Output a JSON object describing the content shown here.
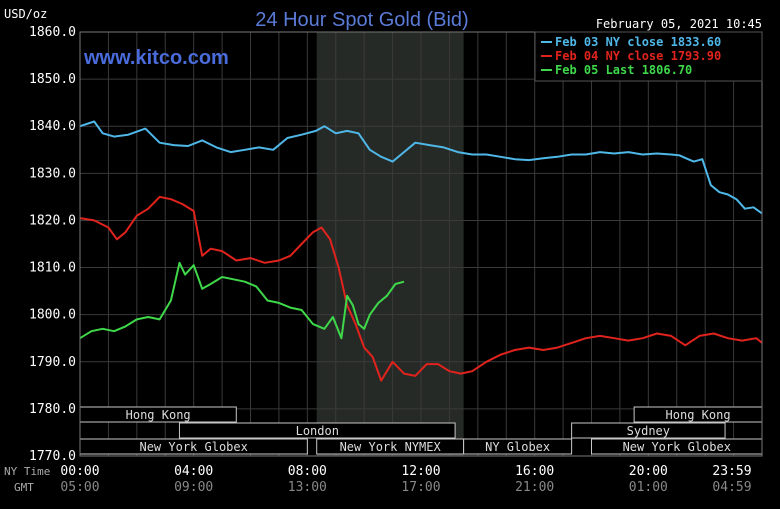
{
  "header": {
    "title": "24 Hour Spot Gold (Bid)",
    "unit": "USD/oz",
    "timestamp": "February 05, 2021 10:45",
    "watermark": "www.kitco.com"
  },
  "colors": {
    "background": "#000000",
    "grid": "#3a3a3a",
    "axis_text": "#ffffff",
    "title": "#5b7bd8",
    "watermark": "#4a6bdb",
    "shade": "#262a26",
    "session_box": "#c8c8c8",
    "session_text": "#000000"
  },
  "chart_data": {
    "type": "line",
    "title": "24 Hour Spot Gold (Bid)",
    "ylabel": "USD/oz",
    "ylim": [
      1770,
      1860
    ],
    "y_ticks": [
      "1860.0",
      "1850.0",
      "1840.0",
      "1830.0",
      "1820.0",
      "1810.0",
      "1800.0",
      "1790.0",
      "1780.0",
      "1770.0"
    ],
    "xlim": [
      0,
      24
    ],
    "x_tick_hours": [
      0,
      4,
      8,
      12,
      16,
      20,
      23.983
    ],
    "x_ticks_ny": [
      "00:00",
      "04:00",
      "08:00",
      "12:00",
      "16:00",
      "20:00",
      "23:59"
    ],
    "x_ticks_gmt": [
      "05:00",
      "09:00",
      "13:00",
      "17:00",
      "21:00",
      "01:00",
      "04:59"
    ],
    "x_axis_labels": {
      "ny": "NY Time",
      "gmt": "GMT"
    },
    "shaded_region_hours": [
      8.33,
      13.5
    ],
    "grid": true,
    "legend_placement": "top-right",
    "series": [
      {
        "name": "Feb 03 NY close 1833.60",
        "color": "#4fb8e8",
        "hours": [
          0,
          0.5,
          0.8,
          1.2,
          1.7,
          2.3,
          2.8,
          3.3,
          3.8,
          4.3,
          4.8,
          5.3,
          5.8,
          6.3,
          6.8,
          7.3,
          7.8,
          8.3,
          8.6,
          9.0,
          9.4,
          9.8,
          10.2,
          10.6,
          11.0,
          11.4,
          11.8,
          12.3,
          12.8,
          13.3,
          13.8,
          14.3,
          14.8,
          15.3,
          15.8,
          16.3,
          16.8,
          17.3,
          17.8,
          18.3,
          18.8,
          19.3,
          19.8,
          20.3,
          20.8,
          21.1,
          21.4,
          21.6,
          21.9,
          22.2,
          22.5,
          22.8,
          23.1,
          23.4,
          23.7,
          24.0
        ],
        "values": [
          1840.0,
          1841.0,
          1838.5,
          1837.8,
          1838.2,
          1839.5,
          1836.5,
          1836.0,
          1835.8,
          1837.0,
          1835.5,
          1834.5,
          1835.0,
          1835.5,
          1835.0,
          1837.5,
          1838.2,
          1839.0,
          1840.0,
          1838.5,
          1839.0,
          1838.5,
          1835.0,
          1833.5,
          1832.5,
          1834.5,
          1836.5,
          1836.0,
          1835.5,
          1834.5,
          1834.0,
          1834.0,
          1833.5,
          1833.0,
          1832.8,
          1833.2,
          1833.5,
          1834.0,
          1834.0,
          1834.5,
          1834.2,
          1834.5,
          1834.0,
          1834.2,
          1834.0,
          1833.8,
          1833.0,
          1832.5,
          1833.0,
          1827.5,
          1826.0,
          1825.5,
          1824.5,
          1822.5,
          1822.8,
          1821.5
        ]
      },
      {
        "name": "Feb 04 NY close 1793.90",
        "color": "#e0231c",
        "hours": [
          0,
          0.5,
          1.0,
          1.3,
          1.6,
          2.0,
          2.4,
          2.8,
          3.2,
          3.6,
          4.0,
          4.3,
          4.6,
          5.0,
          5.5,
          6.0,
          6.5,
          7.0,
          7.4,
          7.8,
          8.2,
          8.5,
          8.8,
          9.1,
          9.4,
          9.7,
          10.0,
          10.3,
          10.6,
          11.0,
          11.4,
          11.8,
          12.2,
          12.6,
          13.0,
          13.4,
          13.8,
          14.3,
          14.8,
          15.3,
          15.8,
          16.3,
          16.8,
          17.3,
          17.8,
          18.3,
          18.8,
          19.3,
          19.8,
          20.3,
          20.8,
          21.3,
          21.8,
          22.3,
          22.8,
          23.3,
          23.8,
          24.0
        ],
        "values": [
          1820.5,
          1820.0,
          1818.5,
          1816.0,
          1817.5,
          1821.0,
          1822.5,
          1825.0,
          1824.5,
          1823.5,
          1822.0,
          1812.5,
          1814.0,
          1813.5,
          1811.5,
          1812.0,
          1811.0,
          1811.5,
          1812.5,
          1815.0,
          1817.5,
          1818.5,
          1816.0,
          1810.0,
          1802.0,
          1798.0,
          1793.0,
          1791.0,
          1786.0,
          1790.0,
          1787.5,
          1787.0,
          1789.5,
          1789.5,
          1788.0,
          1787.5,
          1788.0,
          1790.0,
          1791.5,
          1792.5,
          1793.0,
          1792.5,
          1793.0,
          1794.0,
          1795.0,
          1795.5,
          1795.0,
          1794.5,
          1795.0,
          1796.0,
          1795.5,
          1793.5,
          1795.5,
          1796.0,
          1795.0,
          1794.5,
          1795.0,
          1794.0
        ]
      },
      {
        "name": "Feb 05 Last 1806.70",
        "color": "#3ed84a",
        "hours": [
          0,
          0.4,
          0.8,
          1.2,
          1.6,
          2.0,
          2.4,
          2.8,
          3.2,
          3.5,
          3.7,
          4.0,
          4.3,
          4.6,
          5.0,
          5.4,
          5.8,
          6.2,
          6.6,
          7.0,
          7.4,
          7.8,
          8.2,
          8.6,
          8.9,
          9.2,
          9.4,
          9.6,
          9.8,
          10.0,
          10.2,
          10.5,
          10.8,
          11.1,
          11.4
        ],
        "values": [
          1795.0,
          1796.5,
          1797.0,
          1796.5,
          1797.5,
          1799.0,
          1799.5,
          1799.0,
          1803.0,
          1811.0,
          1808.5,
          1810.5,
          1805.5,
          1806.5,
          1808.0,
          1807.5,
          1807.0,
          1806.0,
          1803.0,
          1802.5,
          1801.5,
          1801.0,
          1798.0,
          1797.0,
          1799.5,
          1795.0,
          1804.0,
          1802.0,
          1798.0,
          1797.0,
          1800.0,
          1802.5,
          1804.0,
          1806.5,
          1807.0
        ]
      }
    ]
  },
  "sessions": [
    {
      "label": "Hong Kong",
      "start": 0,
      "end": 5.5,
      "row": 0
    },
    {
      "label": "London",
      "start": 3.5,
      "end": 13.2,
      "row": 1
    },
    {
      "label": "New York Globex",
      "start": 0,
      "end": 8.0,
      "row": 2
    },
    {
      "label": "New York NYMEX",
      "start": 8.33,
      "end": 13.5,
      "row": 2
    },
    {
      "label": "NY Globex",
      "start": 13.5,
      "end": 17.3,
      "row": 2
    },
    {
      "label": "Hong Kong",
      "start": 19.5,
      "end": 24,
      "row": 0
    },
    {
      "label": "Sydney",
      "start": 17.3,
      "end": 22.7,
      "row": 1
    },
    {
      "label": "New York Globex",
      "start": 18.0,
      "end": 24,
      "row": 2
    }
  ]
}
